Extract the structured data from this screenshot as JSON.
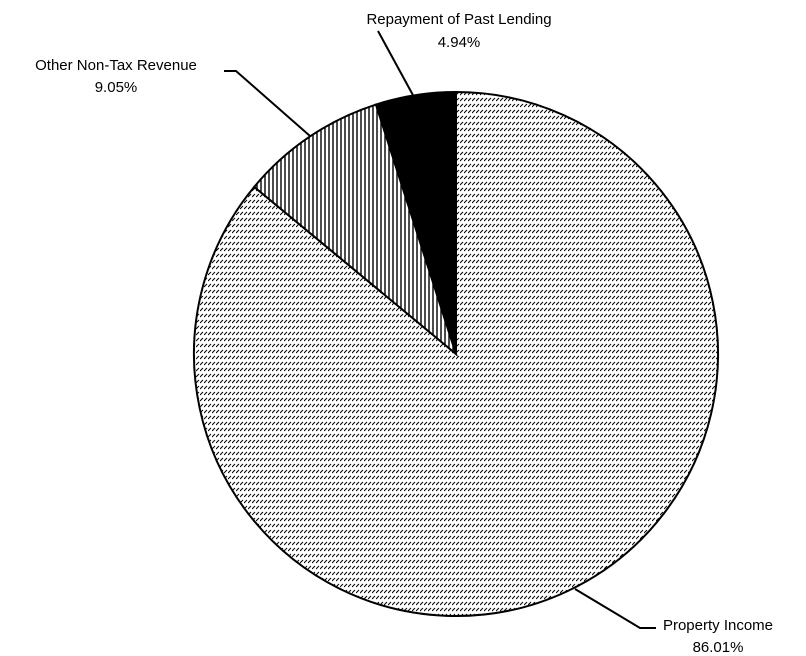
{
  "chart_data": {
    "type": "pie",
    "categories": [
      "Property Income",
      "Other Non-Tax Revenue",
      "Repayment of Past Lending"
    ],
    "values": [
      86.01,
      9.05,
      4.94
    ],
    "value_labels": [
      "86.01%",
      "9.05%",
      "4.94%"
    ],
    "patterns": [
      "diagonal-hatch",
      "vertical-hatch",
      "solid"
    ],
    "color": "#000000",
    "start_angle": 0,
    "direction": "clockwise"
  }
}
